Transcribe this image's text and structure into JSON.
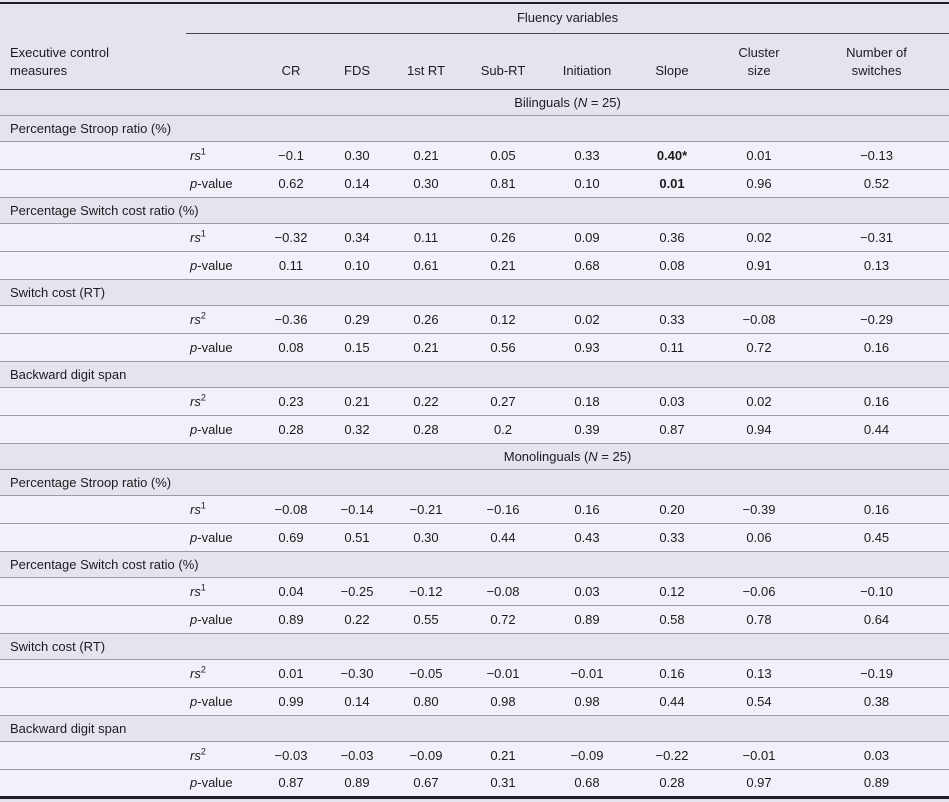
{
  "page": {
    "background": "#e4e4ee",
    "data_row_background": "#f1f1f9",
    "text_color": "#1c1c1e",
    "rule_color": "#9b9ba8",
    "heavy_rule_color": "#1e1e26"
  },
  "table": {
    "fluency_header": "Fluency variables",
    "measures_header": "Executive control\nmeasures",
    "columns": [
      "CR",
      "FDS",
      "1st RT",
      "Sub-RT",
      "Initiation",
      "Slope",
      "Cluster\nsize",
      "Number of\nswitches"
    ],
    "stat_labels": {
      "rs": "rs",
      "p": "p",
      "p_rest": "-value"
    },
    "groups": [
      {
        "name": "Bilinguals",
        "n_label": "N",
        "n_value": "25",
        "sections": [
          {
            "label": "Percentage Stroop ratio (%)",
            "rows": [
              {
                "stat": "rs",
                "sup": "1",
                "values": [
                  "−0.1",
                  "0.30",
                  "0.21",
                  "0.05",
                  "0.33",
                  "0.40*",
                  "0.01",
                  "−0.13"
                ],
                "bold": [
                  5
                ]
              },
              {
                "stat": "p",
                "values": [
                  "0.62",
                  "0.14",
                  "0.30",
                  "0.81",
                  "0.10",
                  "0.01",
                  "0.96",
                  "0.52"
                ],
                "bold": [
                  5
                ]
              }
            ]
          },
          {
            "label": "Percentage Switch cost ratio (%)",
            "rows": [
              {
                "stat": "rs",
                "sup": "1",
                "values": [
                  "−0.32",
                  "0.34",
                  "0.11",
                  "0.26",
                  "0.09",
                  "0.36",
                  "0.02",
                  "−0.31"
                ],
                "bold": []
              },
              {
                "stat": "p",
                "values": [
                  "0.11",
                  "0.10",
                  "0.61",
                  "0.21",
                  "0.68",
                  "0.08",
                  "0.91",
                  "0.13"
                ],
                "bold": []
              }
            ]
          },
          {
            "label": "Switch cost (RT)",
            "rows": [
              {
                "stat": "rs",
                "sup": "2",
                "values": [
                  "−0.36",
                  "0.29",
                  "0.26",
                  "0.12",
                  "0.02",
                  "0.33",
                  "−0.08",
                  "−0.29"
                ],
                "bold": []
              },
              {
                "stat": "p",
                "values": [
                  "0.08",
                  "0.15",
                  "0.21",
                  "0.56",
                  "0.93",
                  "0.11",
                  "0.72",
                  "0.16"
                ],
                "bold": []
              }
            ]
          },
          {
            "label": "Backward digit span",
            "rows": [
              {
                "stat": "rs",
                "sup": "2",
                "values": [
                  "0.23",
                  "0.21",
                  "0.22",
                  "0.27",
                  "0.18",
                  "0.03",
                  "0.02",
                  "0.16"
                ],
                "bold": []
              },
              {
                "stat": "p",
                "values": [
                  "0.28",
                  "0.32",
                  "0.28",
                  "0.2",
                  "0.39",
                  "0.87",
                  "0.94",
                  "0.44"
                ],
                "bold": []
              }
            ]
          }
        ]
      },
      {
        "name": "Monolinguals",
        "n_label": "N",
        "n_value": "25",
        "sections": [
          {
            "label": "Percentage Stroop ratio (%)",
            "rows": [
              {
                "stat": "rs",
                "sup": "1",
                "values": [
                  "−0.08",
                  "−0.14",
                  "−0.21",
                  "−0.16",
                  "0.16",
                  "0.20",
                  "−0.39",
                  "0.16"
                ],
                "bold": []
              },
              {
                "stat": "p",
                "values": [
                  "0.69",
                  "0.51",
                  "0.30",
                  "0.44",
                  "0.43",
                  "0.33",
                  "0.06",
                  "0.45"
                ],
                "bold": []
              }
            ]
          },
          {
            "label": "Percentage Switch cost ratio (%)",
            "rows": [
              {
                "stat": "rs",
                "sup": "1",
                "values": [
                  "0.04",
                  "−0.25",
                  "−0.12",
                  "−0.08",
                  "0.03",
                  "0.12",
                  "−0.06",
                  "−0.10"
                ],
                "bold": []
              },
              {
                "stat": "p",
                "values": [
                  "0.89",
                  "0.22",
                  "0.55",
                  "0.72",
                  "0.89",
                  "0.58",
                  "0.78",
                  "0.64"
                ],
                "bold": []
              }
            ]
          },
          {
            "label": "Switch cost (RT)",
            "rows": [
              {
                "stat": "rs",
                "sup": "2",
                "values": [
                  "0.01",
                  "−0.30",
                  "−0.05",
                  "−0.01",
                  "−0.01",
                  "0.16",
                  "0.13",
                  "−0.19"
                ],
                "bold": []
              },
              {
                "stat": "p",
                "values": [
                  "0.99",
                  "0.14",
                  "0.80",
                  "0.98",
                  "0.98",
                  "0.44",
                  "0.54",
                  "0.38"
                ],
                "bold": []
              }
            ]
          },
          {
            "label": "Backward digit span",
            "rows": [
              {
                "stat": "rs",
                "sup": "2",
                "values": [
                  "−0.03",
                  "−0.03",
                  "−0.09",
                  "0.21",
                  "−0.09",
                  "−0.22",
                  "−0.01",
                  "0.03"
                ],
                "bold": []
              },
              {
                "stat": "p",
                "values": [
                  "0.87",
                  "0.89",
                  "0.67",
                  "0.31",
                  "0.68",
                  "0.28",
                  "0.97",
                  "0.89"
                ],
                "bold": []
              }
            ]
          }
        ]
      }
    ]
  }
}
